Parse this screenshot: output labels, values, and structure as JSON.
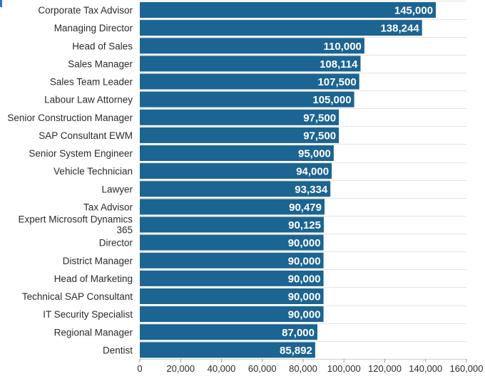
{
  "chart_data": {
    "type": "bar",
    "orientation": "horizontal",
    "categories": [
      "Corporate Tax Advisor",
      "Managing Director",
      "Head of Sales",
      "Sales Manager",
      "Sales Team Leader",
      "Labour Law Attorney",
      "Senior Construction Manager",
      "SAP Consultant EWM",
      "Senior System Engineer",
      "Vehicle Technician",
      "Lawyer",
      "Tax Advisor",
      "Expert Microsoft Dynamics 365",
      "Director",
      "District Manager",
      "Head of Marketing",
      "Technical SAP Consultant",
      "IT Security Specialist",
      "Regional Manager",
      "Dentist"
    ],
    "values": [
      145000,
      138244,
      110000,
      108114,
      107500,
      105000,
      97500,
      97500,
      95000,
      94000,
      93334,
      90479,
      90125,
      90000,
      90000,
      90000,
      90000,
      90000,
      87000,
      85892
    ],
    "value_labels": [
      "145,000",
      "138,244",
      "110,000",
      "108,114",
      "107,500",
      "105,000",
      "97,500",
      "97,500",
      "95,000",
      "94,000",
      "93,334",
      "90,479",
      "90,125",
      "90,000",
      "90,000",
      "90,000",
      "90,000",
      "90,000",
      "87,000",
      "85,892"
    ],
    "xlim": [
      0,
      160000
    ],
    "x_ticks": [
      0,
      20000,
      40000,
      60000,
      80000,
      100000,
      120000,
      140000,
      160000
    ],
    "x_tick_labels": [
      "0",
      "20,000",
      "40,000",
      "60,000",
      "80,000",
      "100,000",
      "120,000",
      "140,000",
      "160,000"
    ],
    "title": "",
    "xlabel": "",
    "ylabel": "",
    "grid": true,
    "bar_color": "#1c6491",
    "grid_color": "#e4e4e4"
  }
}
